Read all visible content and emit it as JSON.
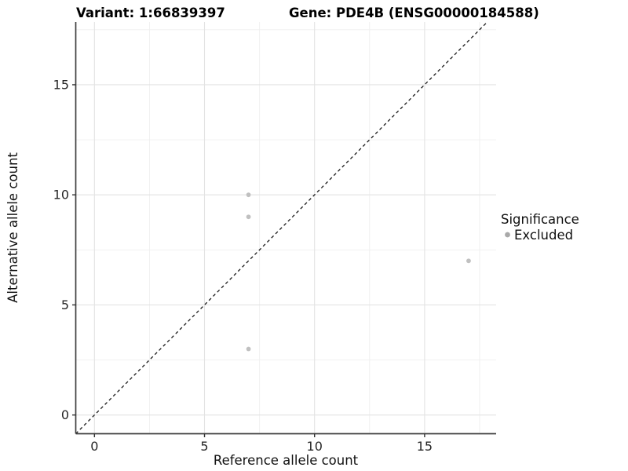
{
  "chart_data": {
    "type": "scatter",
    "title_left": "Variant: 1:66839397",
    "title_right": "Gene: PDE4B (ENSG00000184588)",
    "xlabel": "Reference allele count",
    "ylabel": "Alternative allele count",
    "xlim": [
      -0.85,
      18.25
    ],
    "ylim": [
      -0.85,
      17.85
    ],
    "x_major_ticks": [
      0,
      5,
      10,
      15
    ],
    "y_major_ticks": [
      0,
      5,
      10,
      15
    ],
    "x_minor_gridlines": [
      2.5,
      7.5,
      12.5,
      17.5
    ],
    "y_minor_gridlines": [
      2.5,
      7.5,
      12.5,
      17.5
    ],
    "grid": true,
    "identity_line": {
      "style": "dashed",
      "equation": "y = x"
    },
    "series": [
      {
        "name": "Excluded",
        "color": "#c0c0c0",
        "points": [
          {
            "x": 7,
            "y": 10
          },
          {
            "x": 7,
            "y": 9
          },
          {
            "x": 7,
            "y": 3
          },
          {
            "x": 17,
            "y": 7
          }
        ]
      }
    ],
    "legend": {
      "position": "right",
      "title": "Significance",
      "items": [
        {
          "label": "Excluded",
          "color": "#a9a9a9"
        }
      ]
    },
    "colors": {
      "major_grid": "#e3e3e3",
      "minor_grid": "#efefef",
      "axis_line": "#3f3f3f",
      "tick_mark": "#333333",
      "identity_line": "#1a1a1a"
    }
  }
}
